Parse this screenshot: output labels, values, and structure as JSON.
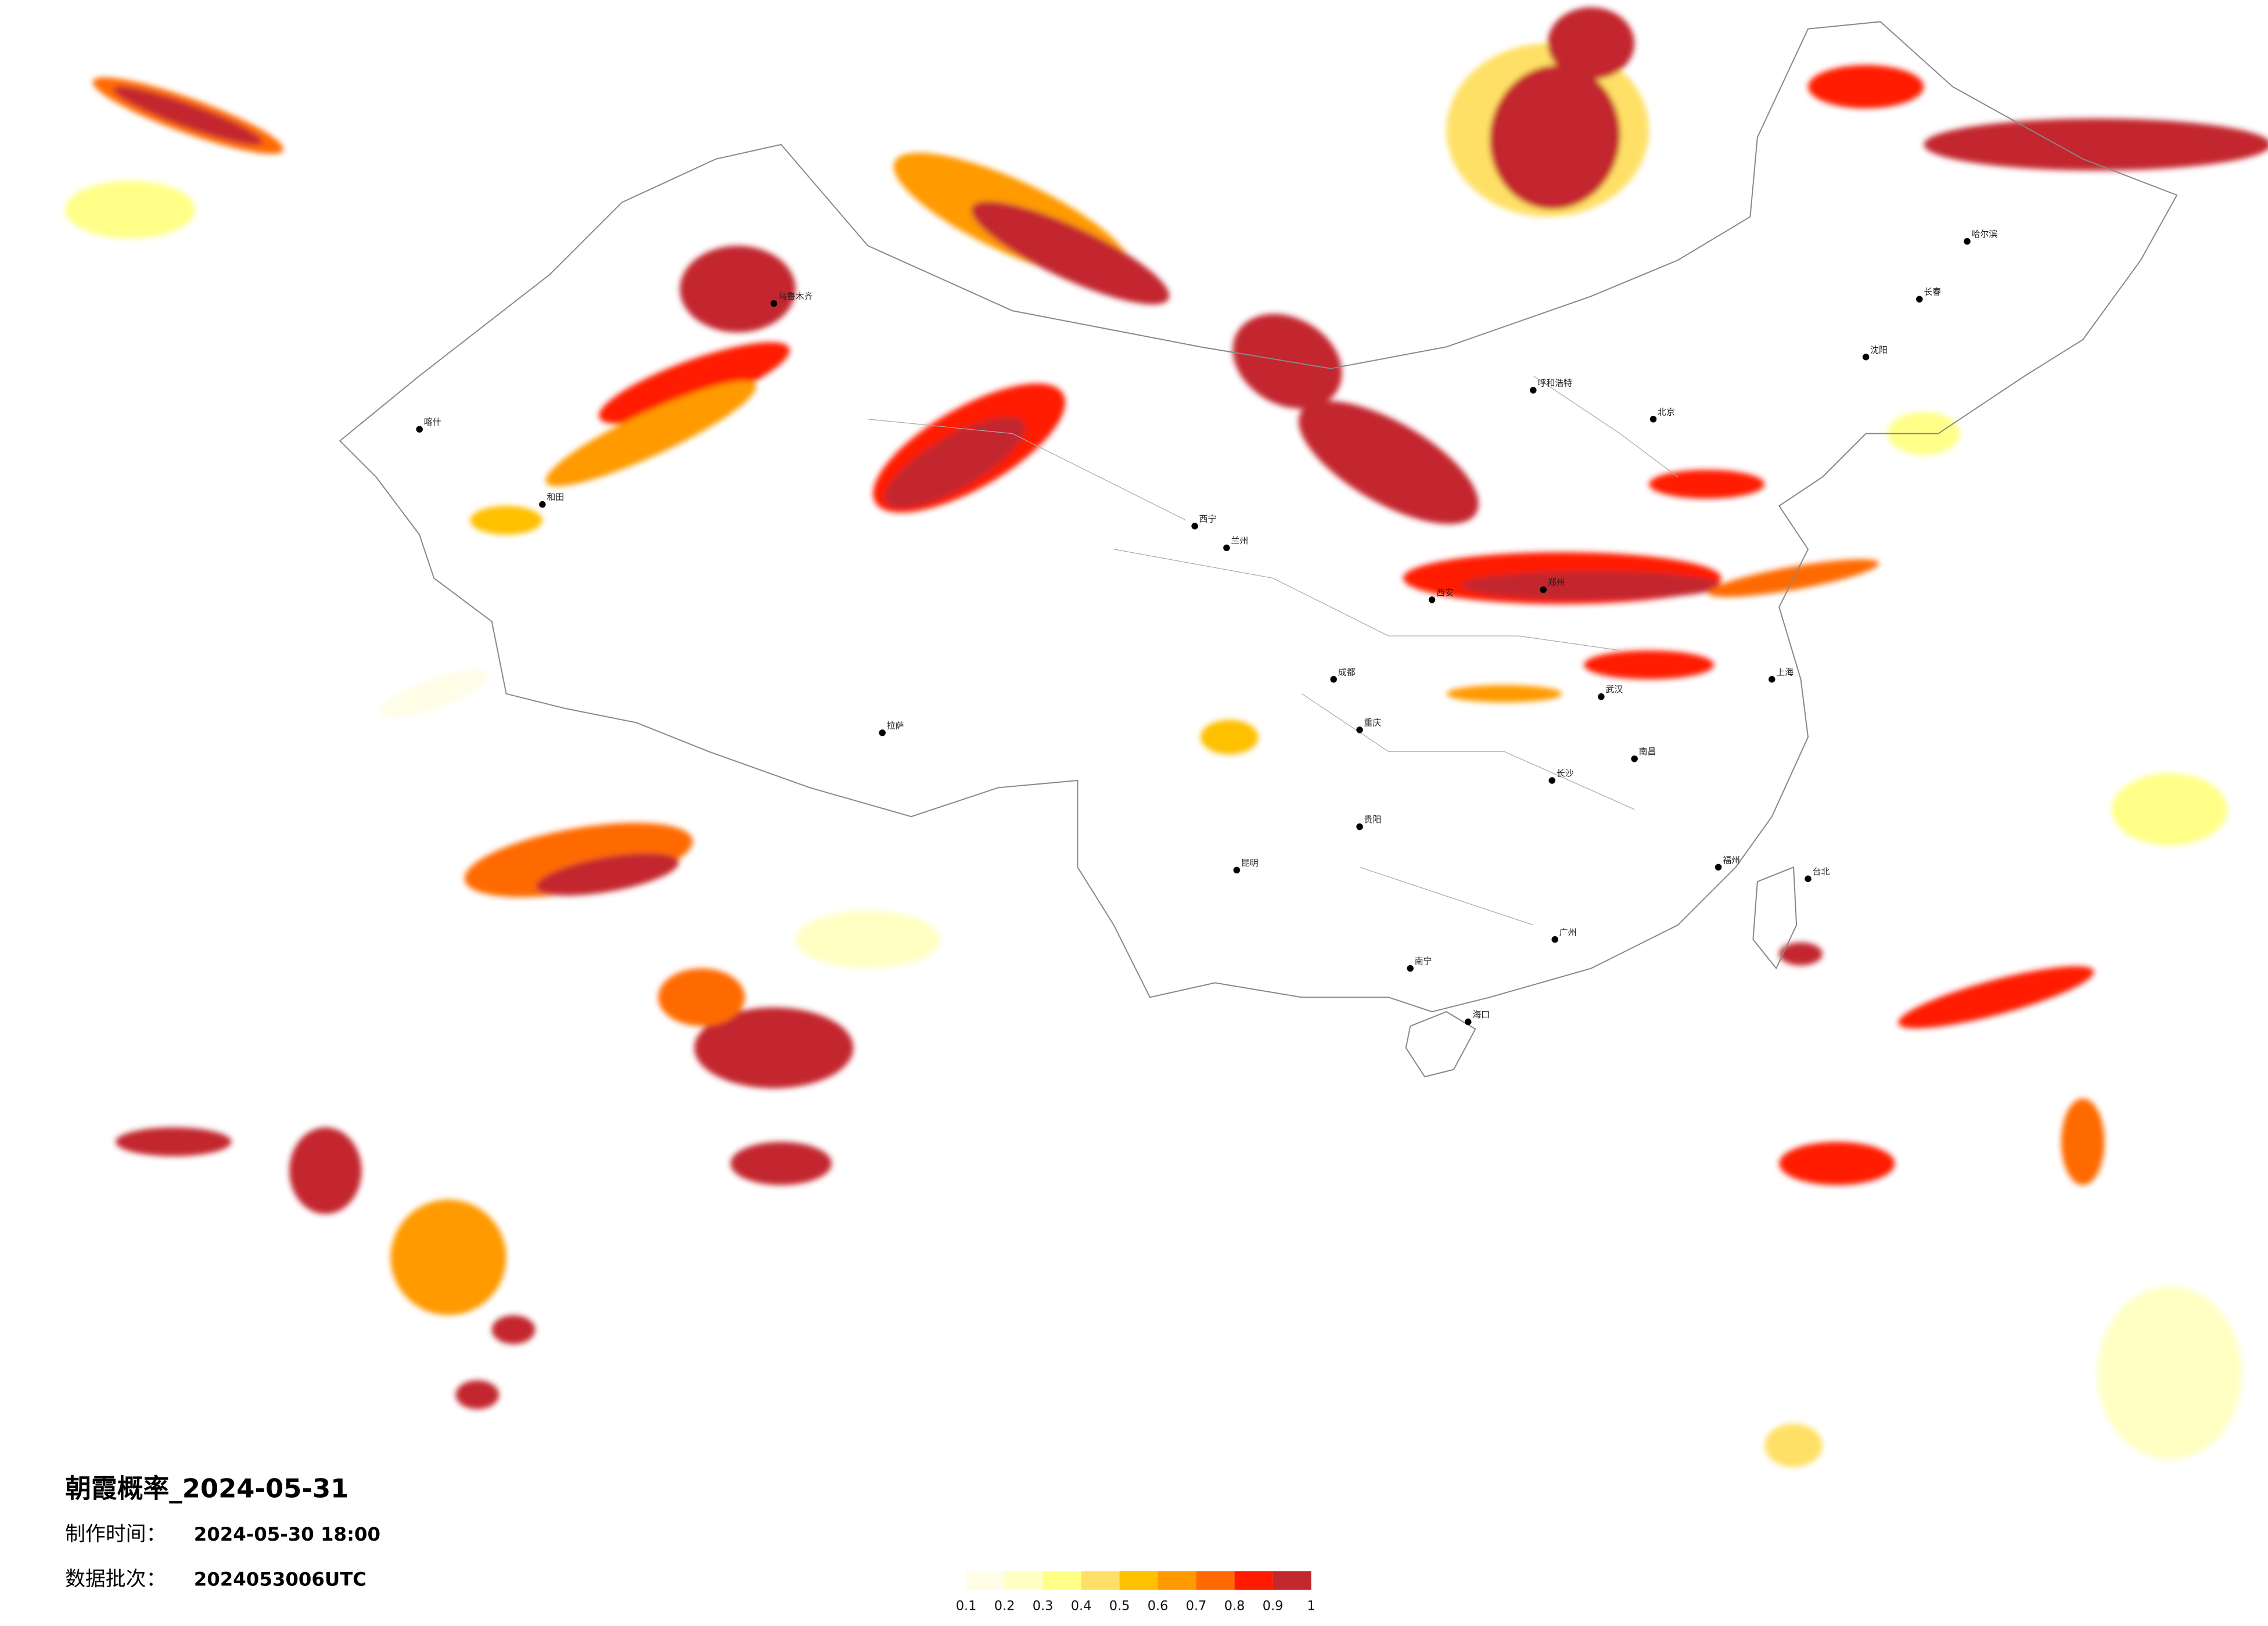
{
  "header": {
    "title": "朝霞概率_2024-05-31",
    "made_time_label": "制作时间：",
    "made_time": "2024-05-30 18:00",
    "batch_label": "数据批次：",
    "batch": "2024053006UTC"
  },
  "colorbar": {
    "ticks": [
      0.1,
      0.2,
      0.3,
      0.4,
      0.5,
      0.6,
      0.7,
      0.8,
      0.9,
      1
    ],
    "colors": [
      "#fffde6",
      "#ffffc4",
      "#ffff88",
      "#ffe066",
      "#ffc000",
      "#ff9a00",
      "#ff6a00",
      "#ff1a00",
      "#c3282e"
    ]
  },
  "cities": [
    "乌鲁木齐",
    "喀什",
    "和田",
    "拉萨",
    "西宁",
    "兰州",
    "成都",
    "重庆",
    "昆明",
    "贵阳",
    "南宁",
    "海口",
    "广州",
    "长沙",
    "南昌",
    "福州",
    "台北",
    "武汉",
    "郑州",
    "西安",
    "北京",
    "呼和浩特",
    "沈阳",
    "长春",
    "哈尔滨",
    "上海"
  ]
}
